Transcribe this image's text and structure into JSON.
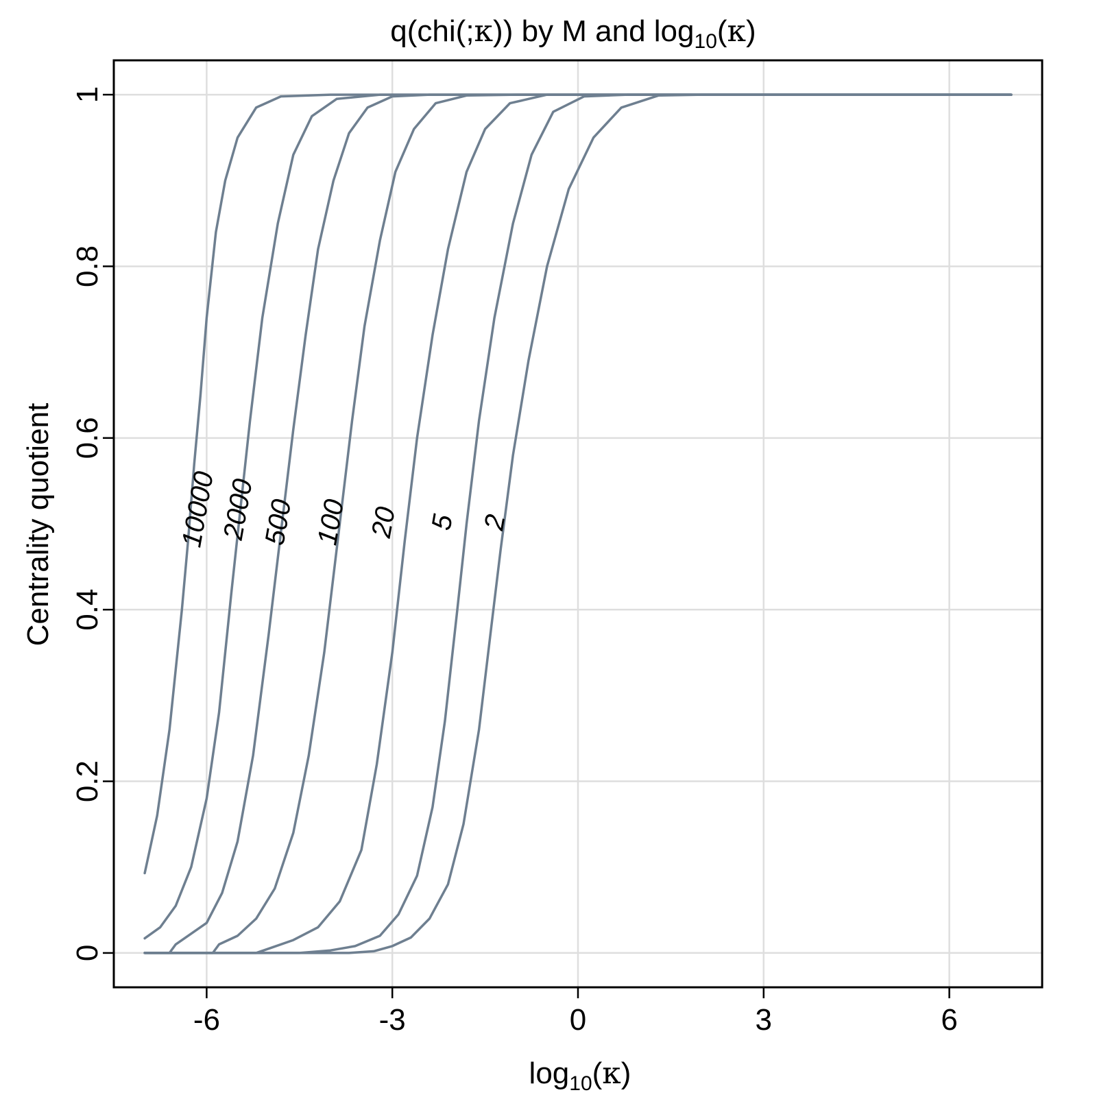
{
  "chart_data": {
    "type": "line",
    "title_main": "q(chi(;",
    "title_kappa": "κ",
    "title_mid": ")) by M and log",
    "title_sub": "10",
    "title_end": ")",
    "xlabel_main": "log",
    "xlabel_sub": "10",
    "xlabel_kappa": "κ",
    "ylabel": "Centrality quotient",
    "xlim": [
      -7.5,
      7.5
    ],
    "ylim": [
      -0.04,
      1.04
    ],
    "xticks": [
      -6,
      -3,
      0,
      3,
      6
    ],
    "xtick_labels": [
      "-6",
      "-3",
      "0",
      "3",
      "6"
    ],
    "yticks": [
      0,
      0.2,
      0.4,
      0.6,
      0.8,
      1
    ],
    "ytick_labels": [
      "0",
      "0.2",
      "0.4",
      "0.6",
      "0.8",
      "1"
    ],
    "grid": true,
    "line_color": "#6e7f90",
    "grid_color": "#dedede",
    "series": [
      {
        "name": "10000",
        "label_x": -6.0,
        "label_y": 0.515,
        "points": [
          [
            -7,
            0.093
          ],
          [
            -6.8,
            0.16
          ],
          [
            -6.6,
            0.26
          ],
          [
            -6.4,
            0.4
          ],
          [
            -6.3,
            0.48
          ],
          [
            -6.2,
            0.57
          ],
          [
            -6.1,
            0.65
          ],
          [
            -6.0,
            0.74
          ],
          [
            -5.85,
            0.84
          ],
          [
            -5.7,
            0.9
          ],
          [
            -5.5,
            0.95
          ],
          [
            -5.2,
            0.985
          ],
          [
            -4.8,
            0.998
          ],
          [
            -4.0,
            1.0
          ],
          [
            7,
            1.0
          ]
        ]
      },
      {
        "name": "2000",
        "label_x": -5.35,
        "label_y": 0.515,
        "points": [
          [
            -7,
            0.017
          ],
          [
            -6.75,
            0.03
          ],
          [
            -6.5,
            0.055
          ],
          [
            -6.25,
            0.1
          ],
          [
            -6.0,
            0.18
          ],
          [
            -5.8,
            0.28
          ],
          [
            -5.6,
            0.42
          ],
          [
            -5.45,
            0.52
          ],
          [
            -5.3,
            0.62
          ],
          [
            -5.1,
            0.74
          ],
          [
            -4.85,
            0.85
          ],
          [
            -4.6,
            0.93
          ],
          [
            -4.3,
            0.975
          ],
          [
            -3.9,
            0.995
          ],
          [
            -3.2,
            1.0
          ],
          [
            7,
            1.0
          ]
        ]
      },
      {
        "name": "500",
        "label_x": -4.7,
        "label_y": 0.5,
        "points": [
          [
            -7,
            0.0
          ],
          [
            -6.6,
            0.0
          ],
          [
            -6.5,
            0.01
          ],
          [
            -6.3,
            0.02
          ],
          [
            -6.0,
            0.035
          ],
          [
            -5.75,
            0.07
          ],
          [
            -5.5,
            0.13
          ],
          [
            -5.25,
            0.23
          ],
          [
            -5.0,
            0.37
          ],
          [
            -4.8,
            0.49
          ],
          [
            -4.6,
            0.61
          ],
          [
            -4.4,
            0.72
          ],
          [
            -4.2,
            0.82
          ],
          [
            -3.95,
            0.9
          ],
          [
            -3.7,
            0.955
          ],
          [
            -3.4,
            0.985
          ],
          [
            -3.0,
            0.998
          ],
          [
            -2.4,
            1.0
          ],
          [
            7,
            1.0
          ]
        ]
      },
      {
        "name": "100",
        "label_x": -3.85,
        "label_y": 0.5,
        "points": [
          [
            -7,
            0.0
          ],
          [
            -5.9,
            0.0
          ],
          [
            -5.8,
            0.01
          ],
          [
            -5.5,
            0.02
          ],
          [
            -5.2,
            0.04
          ],
          [
            -4.9,
            0.075
          ],
          [
            -4.6,
            0.14
          ],
          [
            -4.35,
            0.23
          ],
          [
            -4.1,
            0.35
          ],
          [
            -3.85,
            0.5
          ],
          [
            -3.65,
            0.62
          ],
          [
            -3.45,
            0.73
          ],
          [
            -3.2,
            0.83
          ],
          [
            -2.95,
            0.91
          ],
          [
            -2.65,
            0.96
          ],
          [
            -2.3,
            0.99
          ],
          [
            -1.8,
            0.999
          ],
          [
            -1.0,
            1.0
          ],
          [
            7,
            1.0
          ]
        ]
      },
      {
        "name": "20",
        "label_x": -3.0,
        "label_y": 0.5,
        "points": [
          [
            -7,
            0.0
          ],
          [
            -5.2,
            0.0
          ],
          [
            -5.0,
            0.005
          ],
          [
            -4.6,
            0.015
          ],
          [
            -4.2,
            0.03
          ],
          [
            -3.85,
            0.06
          ],
          [
            -3.5,
            0.12
          ],
          [
            -3.25,
            0.22
          ],
          [
            -3.0,
            0.35
          ],
          [
            -2.8,
            0.48
          ],
          [
            -2.6,
            0.6
          ],
          [
            -2.35,
            0.72
          ],
          [
            -2.1,
            0.82
          ],
          [
            -1.8,
            0.91
          ],
          [
            -1.5,
            0.96
          ],
          [
            -1.1,
            0.99
          ],
          [
            -0.5,
            1.0
          ],
          [
            7,
            1.0
          ]
        ]
      },
      {
        "name": "5",
        "label_x": -2.05,
        "label_y": 0.5,
        "points": [
          [
            -7,
            0.0
          ],
          [
            -4.5,
            0.0
          ],
          [
            -4.0,
            0.003
          ],
          [
            -3.6,
            0.008
          ],
          [
            -3.2,
            0.02
          ],
          [
            -2.9,
            0.045
          ],
          [
            -2.6,
            0.09
          ],
          [
            -2.35,
            0.17
          ],
          [
            -2.15,
            0.27
          ],
          [
            -1.95,
            0.4
          ],
          [
            -1.8,
            0.5
          ],
          [
            -1.6,
            0.62
          ],
          [
            -1.35,
            0.74
          ],
          [
            -1.05,
            0.85
          ],
          [
            -0.75,
            0.93
          ],
          [
            -0.4,
            0.98
          ],
          [
            0.1,
            0.998
          ],
          [
            0.8,
            1.0
          ],
          [
            7,
            1.0
          ]
        ]
      },
      {
        "name": "2",
        "label_x": -1.2,
        "label_y": 0.5,
        "points": [
          [
            -7,
            0.0
          ],
          [
            -3.7,
            0.0
          ],
          [
            -3.3,
            0.002
          ],
          [
            -3.0,
            0.008
          ],
          [
            -2.7,
            0.018
          ],
          [
            -2.4,
            0.04
          ],
          [
            -2.1,
            0.08
          ],
          [
            -1.85,
            0.15
          ],
          [
            -1.6,
            0.26
          ],
          [
            -1.4,
            0.38
          ],
          [
            -1.25,
            0.47
          ],
          [
            -1.05,
            0.58
          ],
          [
            -0.8,
            0.69
          ],
          [
            -0.5,
            0.8
          ],
          [
            -0.15,
            0.89
          ],
          [
            0.25,
            0.95
          ],
          [
            0.7,
            0.985
          ],
          [
            1.3,
            0.999
          ],
          [
            2.0,
            1.0
          ],
          [
            7,
            1.0
          ]
        ]
      }
    ]
  }
}
